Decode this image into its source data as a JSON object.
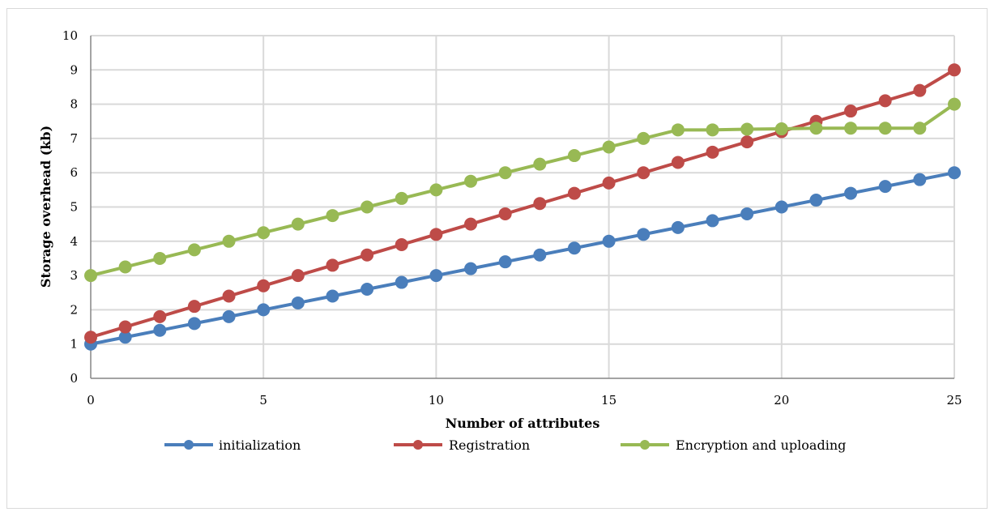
{
  "chart_data": {
    "type": "line",
    "xlabel": "Number of attributes",
    "ylabel": "Storage overhead (kb)",
    "xlim": [
      0,
      25
    ],
    "ylim": [
      0,
      10
    ],
    "x_ticks": [
      0,
      5,
      10,
      15,
      20,
      25
    ],
    "y_ticks": [
      0,
      1,
      2,
      3,
      4,
      5,
      6,
      7,
      8,
      9,
      10
    ],
    "grid": true,
    "legend_position": "bottom",
    "x": [
      0,
      1,
      2,
      3,
      4,
      5,
      6,
      7,
      8,
      9,
      10,
      11,
      12,
      13,
      14,
      15,
      16,
      17,
      18,
      19,
      20,
      21,
      22,
      23,
      24,
      25
    ],
    "series": [
      {
        "name": "initialization",
        "color": "#4a7ebb",
        "values": [
          1.0,
          1.2,
          1.4,
          1.6,
          1.8,
          2.0,
          2.2,
          2.4,
          2.6,
          2.8,
          3.0,
          3.2,
          3.4,
          3.6,
          3.8,
          4.0,
          4.2,
          4.4,
          4.6,
          4.8,
          5.0,
          5.2,
          5.4,
          5.6,
          5.8,
          6.0
        ]
      },
      {
        "name": "Registration",
        "color": "#be4b48",
        "values": [
          1.2,
          1.5,
          1.8,
          2.1,
          2.4,
          2.7,
          3.0,
          3.3,
          3.6,
          3.9,
          4.2,
          4.5,
          4.8,
          5.1,
          5.4,
          5.7,
          6.0,
          6.3,
          6.6,
          6.9,
          7.2,
          7.5,
          7.8,
          8.1,
          8.4,
          9.0
        ]
      },
      {
        "name": "Encryption and uploading",
        "color": "#98b954",
        "values": [
          3.0,
          3.25,
          3.5,
          3.75,
          4.0,
          4.25,
          4.5,
          4.75,
          5.0,
          5.25,
          5.5,
          5.75,
          6.0,
          6.25,
          6.5,
          6.75,
          7.0,
          7.25,
          7.25,
          7.27,
          7.28,
          7.3,
          7.3,
          7.3,
          7.3,
          8.0
        ]
      }
    ]
  }
}
